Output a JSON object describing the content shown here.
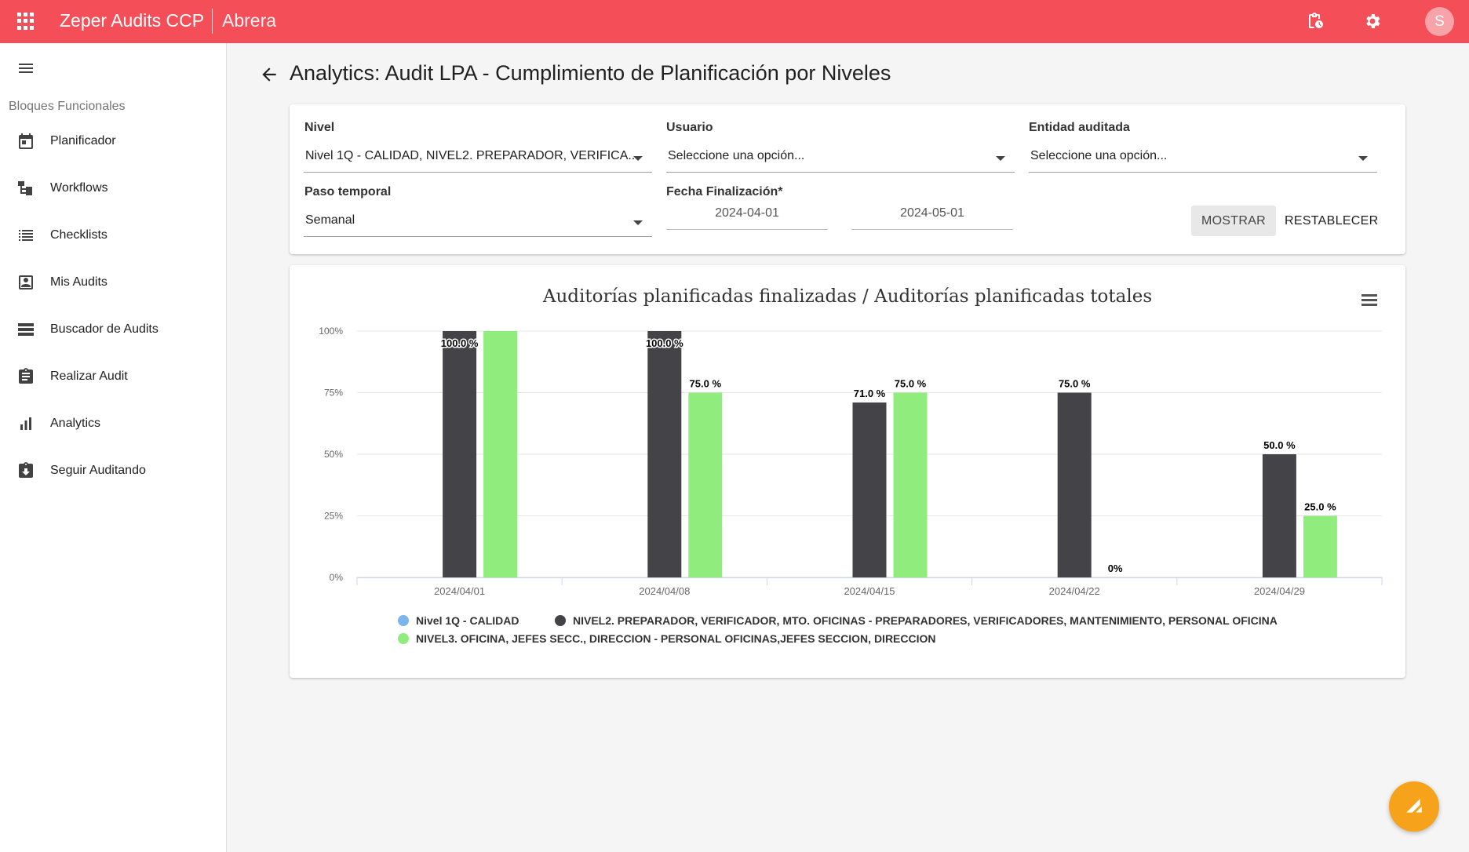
{
  "topbar": {
    "app_title": "Zeper Audits CCP",
    "site_name": "Abrera",
    "avatar_initial": "S",
    "icons": [
      "apps-icon",
      "clipboard-clock-icon",
      "gear-icon"
    ]
  },
  "sidebar": {
    "section_title": "Bloques Funcionales",
    "items": [
      {
        "label": "Planificador",
        "icon": "calendar-icon"
      },
      {
        "label": "Workflows",
        "icon": "workflow-icon"
      },
      {
        "label": "Checklists",
        "icon": "checklist-icon"
      },
      {
        "label": "Mis Audits",
        "icon": "account-box-icon"
      },
      {
        "label": "Buscador de Audits",
        "icon": "storage-list-icon"
      },
      {
        "label": "Realizar Audit",
        "icon": "assignment-icon"
      },
      {
        "label": "Analytics",
        "icon": "bar-chart-icon"
      },
      {
        "label": "Seguir Auditando",
        "icon": "assignment-return-icon"
      }
    ]
  },
  "page": {
    "title": "Analytics: Audit LPA - Cumplimiento de Planificación por Niveles"
  },
  "filters": {
    "nivel_label": "Nivel",
    "nivel_value": "Nivel 1Q - CALIDAD, NIVEL2. PREPARADOR, VERIFICA...",
    "usuario_label": "Usuario",
    "usuario_value": "Seleccione una opción...",
    "entidad_label": "Entidad auditada",
    "entidad_value": "Seleccione una opción...",
    "paso_label": "Paso temporal",
    "paso_value": "Semanal",
    "fecha_label": "Fecha Finalización*",
    "fecha_desde": "2024-04-01",
    "fecha_hasta": "2024-05-01",
    "mostrar_label": "MOSTRAR",
    "restablecer_label": "RESTABLECER"
  },
  "chart_data": {
    "type": "bar",
    "title": "Auditorías planificadas finalizadas / Auditorías planificadas totales",
    "xlabel": "",
    "ylabel": "",
    "ylim": [
      0,
      100
    ],
    "yticks": [
      "0%",
      "25%",
      "50%",
      "75%",
      "100%"
    ],
    "categories": [
      "2024/04/01",
      "2024/04/08",
      "2024/04/15",
      "2024/04/22",
      "2024/04/29"
    ],
    "grid": true,
    "legend_position": "bottom",
    "series": [
      {
        "name": "Nivel 1Q - CALIDAD",
        "color": "#7cb5ec",
        "values": [
          null,
          null,
          null,
          null,
          null
        ],
        "labels": [
          "",
          "",
          "",
          "",
          ""
        ]
      },
      {
        "name": "NIVEL2. PREPARADOR, VERIFICADOR, MTO. OFICINAS - PREPARADORES, VERIFICADORES, MANTENIMIENTO, PERSONAL OFICINA",
        "color": "#434348",
        "values": [
          100,
          100,
          71,
          75,
          50
        ],
        "labels": [
          "100.0 %",
          "100.0 %",
          "71.0 %",
          "75.0 %",
          "50.0 %"
        ]
      },
      {
        "name": "NIVEL3. OFICINA, JEFES SECC., DIRECCION - PERSONAL OFICINAS,JEFES SECCION, DIRECCION",
        "color": "#90ed7d",
        "values": [
          100,
          75,
          75,
          0,
          25
        ],
        "labels": [
          "",
          "75.0 %",
          "75.0 %",
          "0%",
          "25.0 %"
        ]
      }
    ]
  }
}
